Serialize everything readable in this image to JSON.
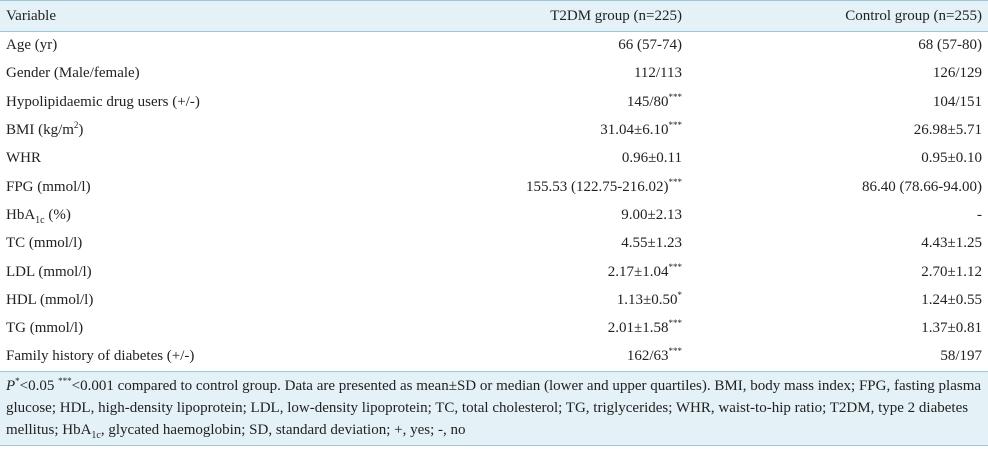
{
  "table": {
    "columns": [
      "Variable",
      "T2DM group (n=225)",
      "Control group (n=255)"
    ],
    "rows": [
      {
        "variable": "Age (yr)",
        "t2dm": "66 (57-74)",
        "t2dm_sup": "",
        "control": "68 (57-80)"
      },
      {
        "variable": "Gender (Male/female)",
        "t2dm": "112/113",
        "t2dm_sup": "",
        "control": "126/129"
      },
      {
        "variable": "Hypolipidaemic drug users (+/-)",
        "t2dm": "145/80",
        "t2dm_sup": "***",
        "control": "104/151"
      },
      {
        "variable_pre": "BMI (kg/m",
        "variable_sup": "2",
        "variable_post": ")",
        "t2dm": "31.04±6.10",
        "t2dm_sup": "***",
        "control": "26.98±5.71"
      },
      {
        "variable": "WHR",
        "t2dm": "0.96±0.11",
        "t2dm_sup": "",
        "control": "0.95±0.10"
      },
      {
        "variable": "FPG (mmol/l)",
        "t2dm": "155.53 (122.75-216.02)",
        "t2dm_sup": "***",
        "control": "86.40 (78.66-94.00)"
      },
      {
        "variable_pre": "HbA",
        "variable_sub": "1c",
        "variable_post": " (%)",
        "t2dm": "9.00±2.13",
        "t2dm_sup": "",
        "control": "-"
      },
      {
        "variable": "TC (mmol/l)",
        "t2dm": "4.55±1.23",
        "t2dm_sup": "",
        "control": "4.43±1.25"
      },
      {
        "variable": "LDL (mmol/l)",
        "t2dm": "2.17±1.04",
        "t2dm_sup": "***",
        "control": "2.70±1.12"
      },
      {
        "variable": "HDL (mmol/l)",
        "t2dm": "1.13±0.50",
        "t2dm_sup": "*",
        "control": "1.24±0.55"
      },
      {
        "variable": "TG (mmol/l)",
        "t2dm": "2.01±1.58",
        "t2dm_sup": "***",
        "control": "1.37±0.81"
      },
      {
        "variable": "Family history of diabetes (+/-)",
        "t2dm": "162/63",
        "t2dm_sup": "***",
        "control": "58/197"
      }
    ]
  },
  "footnote": {
    "p_label": "P",
    "p_sup": "*",
    "sig1": "<0.05 ",
    "sig2_sup": "***",
    "text1": "<0.001 compared to control group. Data are presented as mean±SD or median (lower and upper quartiles). BMI, body mass index; FPG, fasting plasma glucose; HDL, high-density lipoprotein; LDL, low-density lipoprotein; TC, total cholesterol; TG, triglycerides; WHR, waist-to-hip ratio; T2DM, type 2 diabetes mellitus; HbA",
    "hba_sub": "1c",
    "text2": ", glycated haemoglobin; SD, standard deviation; +, yes; -, no"
  },
  "colors": {
    "header_bg": "#e4f1f6",
    "rule": "#9cc7d8"
  }
}
